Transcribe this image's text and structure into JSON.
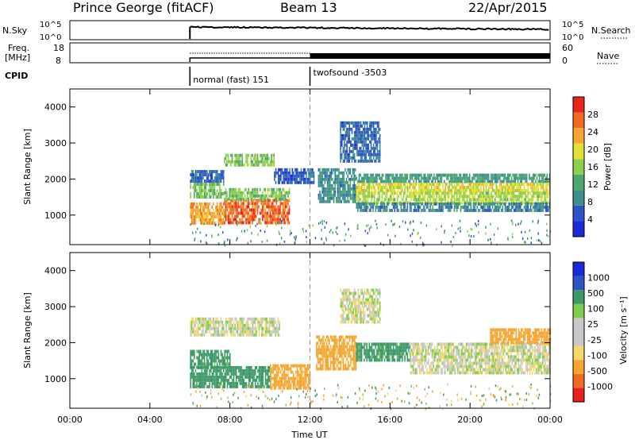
{
  "header": {
    "station": "Prince George (fitACF)",
    "beam": "Beam 13",
    "date": "22/Apr/2015"
  },
  "top_panels": {
    "nsky_label": "N.Sky",
    "nsky_ticks": [
      "10^5",
      "10^0"
    ],
    "nsearch_label": "N.Search",
    "nsearch_ticks": [
      "10^5",
      "10^0"
    ],
    "freq_label_1": "Freq.",
    "freq_label_2": "[MHz]",
    "freq_ticks": [
      "18",
      "8"
    ],
    "nave_label": "Nave",
    "nave_ticks": [
      "60",
      "0"
    ],
    "cpid_label": "CPID",
    "cpid_segments": [
      {
        "start_hour": 6.0,
        "label": "normal (fast) 151"
      },
      {
        "start_hour": 12.0,
        "label": "twofsound -3503"
      }
    ]
  },
  "colors": {
    "power_scale": [
      "#1a2ad8",
      "#2b55c7",
      "#3c8f8a",
      "#4ca66e",
      "#8ed04a",
      "#e3e135",
      "#f7a531",
      "#f26a23",
      "#e8251a"
    ],
    "velocity_scale": [
      "#e8201a",
      "#f26a23",
      "#f7a531",
      "#f7d66a",
      "#c8c8c8",
      "#c8c8c8",
      "#7fcd4a",
      "#3d9a68",
      "#2b55c7",
      "#1a2ad8"
    ]
  },
  "chart_data": [
    {
      "type": "heatmap",
      "name": "power-panel",
      "xlabel": "",
      "ylabel": "Slant Range [km]",
      "x_range_hours": [
        0,
        24
      ],
      "ylim": [
        180,
        4500
      ],
      "yticks": [
        "1000",
        "2000",
        "3000",
        "4000"
      ],
      "colorbar_label": "Power [dB]",
      "colorbar_ticks": [
        "4",
        "8",
        "12",
        "16",
        "20",
        "24",
        "28"
      ],
      "colorbar_range": [
        0,
        30
      ],
      "data_start_hour": 6.0,
      "bands": [
        {
          "t0": 6.0,
          "t1": 7.7,
          "r0": 1900,
          "r1": 2250,
          "value": 6
        },
        {
          "t0": 6.0,
          "t1": 7.7,
          "r0": 1500,
          "r1": 1900,
          "value": 13
        },
        {
          "t0": 6.0,
          "t1": 7.7,
          "r0": 800,
          "r1": 1350,
          "value": 22
        },
        {
          "t0": 7.7,
          "t1": 10.2,
          "r0": 2350,
          "r1": 2700,
          "value": 14
        },
        {
          "t0": 7.7,
          "t1": 11.0,
          "r0": 750,
          "r1": 1450,
          "value": 25
        },
        {
          "t0": 7.7,
          "t1": 11.0,
          "r0": 1450,
          "r1": 1750,
          "value": 14
        },
        {
          "t0": 10.2,
          "t1": 12.2,
          "r0": 1900,
          "r1": 2300,
          "value": 5
        },
        {
          "t0": 12.4,
          "t1": 14.3,
          "r0": 1400,
          "r1": 2300,
          "value": 9
        },
        {
          "t0": 13.5,
          "t1": 15.5,
          "r0": 2500,
          "r1": 3600,
          "value": 6
        },
        {
          "t0": 14.3,
          "t1": 24.0,
          "r0": 1900,
          "r1": 2150,
          "value": 10
        },
        {
          "t0": 14.3,
          "t1": 24.0,
          "r0": 1650,
          "r1": 1900,
          "value": 18
        },
        {
          "t0": 14.3,
          "t1": 24.0,
          "r0": 1350,
          "r1": 1650,
          "value": 16
        },
        {
          "t0": 14.3,
          "t1": 24.0,
          "r0": 1150,
          "r1": 1350,
          "value": 8
        }
      ]
    },
    {
      "type": "heatmap",
      "name": "velocity-panel",
      "xlabel": "Time UT",
      "ylabel": "Slant Range [km]",
      "x_range_hours": [
        0,
        24
      ],
      "xticks": [
        "00:00",
        "04:00",
        "08:00",
        "12:00",
        "16:00",
        "20:00",
        "00:00"
      ],
      "ylim": [
        180,
        4500
      ],
      "yticks": [
        "1000",
        "2000",
        "3000",
        "4000"
      ],
      "colorbar_label": "Velocity [m s⁻¹]",
      "colorbar_ticks": [
        "1000",
        "500",
        "100",
        "25",
        "-25",
        "-100",
        "-500",
        "-1000"
      ],
      "data_start_hour": 6.0,
      "bands": [
        {
          "t0": 6.0,
          "t1": 10.5,
          "r0": 2200,
          "r1": 2700,
          "value": 0
        },
        {
          "t0": 6.0,
          "t1": 8.0,
          "r0": 1350,
          "r1": 1800,
          "value": 150
        },
        {
          "t0": 6.0,
          "t1": 10.0,
          "r0": 750,
          "r1": 1350,
          "value": 200
        },
        {
          "t0": 10.0,
          "t1": 12.0,
          "r0": 750,
          "r1": 1400,
          "value": -150
        },
        {
          "t0": 12.3,
          "t1": 14.3,
          "r0": 1300,
          "r1": 2200,
          "value": -150
        },
        {
          "t0": 13.5,
          "t1": 15.5,
          "r0": 2600,
          "r1": 3500,
          "value": 0
        },
        {
          "t0": 14.3,
          "t1": 17.0,
          "r0": 1500,
          "r1": 2000,
          "value": 150
        },
        {
          "t0": 17.0,
          "t1": 24.0,
          "r0": 1200,
          "r1": 2000,
          "value": 0
        },
        {
          "t0": 21.0,
          "t1": 24.0,
          "r0": 2000,
          "r1": 2400,
          "value": -200
        }
      ]
    }
  ]
}
